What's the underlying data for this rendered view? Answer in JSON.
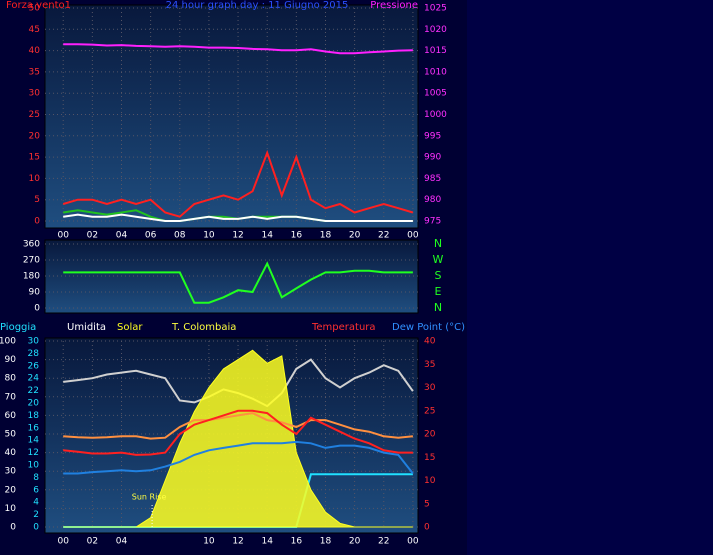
{
  "chart_data": [
    {
      "type": "line",
      "title": "24 hour graph day : 11 Giugno 2015",
      "x": [
        0,
        1,
        2,
        3,
        4,
        5,
        6,
        7,
        8,
        9,
        10,
        11,
        12,
        13,
        14,
        15,
        16,
        17,
        18,
        19,
        20,
        21,
        22,
        23,
        24
      ],
      "xlim": [
        -1.25,
        24.35
      ],
      "xticks": [
        {
          "value": 0,
          "label": "00"
        },
        {
          "value": 2,
          "label": "02"
        },
        {
          "value": 4,
          "label": "04"
        },
        {
          "value": 6,
          "label": "06"
        },
        {
          "value": 8,
          "label": "08"
        },
        10,
        12,
        14,
        16,
        18,
        20,
        22,
        {
          "value": 24,
          "label": "00"
        }
      ],
      "ylim": [
        0,
        50
      ],
      "yticks": [
        0,
        5,
        10,
        15,
        20,
        25,
        30,
        35,
        40,
        45,
        50
      ],
      "y2lim": [
        975,
        1025
      ],
      "y2ticks": [
        975,
        980,
        985,
        990,
        995,
        1000,
        1005,
        1010,
        1015,
        1020,
        1025
      ],
      "grid": true,
      "series": [
        {
          "name": "Forza vento1",
          "color": "#ff2020",
          "values": [
            4,
            5,
            5,
            4,
            5,
            4,
            5,
            2,
            1,
            4,
            5,
            6,
            5,
            7,
            16,
            6,
            15,
            5,
            3,
            4,
            2,
            3,
            4,
            3,
            2
          ]
        },
        {
          "color": "#20c020",
          "values": [
            2,
            2.5,
            2,
            1.5,
            2,
            2.5,
            1,
            0,
            0,
            0.5,
            1,
            1,
            0.5,
            1,
            1,
            1,
            1,
            0.5,
            0,
            0,
            0,
            0,
            0,
            0,
            0
          ]
        },
        {
          "color": "#ffffff",
          "values": [
            1,
            1.5,
            1,
            1,
            1.5,
            1,
            0.5,
            0,
            0,
            0.5,
            1,
            0.5,
            0.5,
            1,
            0.5,
            1,
            1,
            0.5,
            0,
            0,
            0,
            0,
            0,
            0,
            0
          ]
        },
        {
          "name": "Pressione",
          "color": "#ff20ff",
          "axis": "y2",
          "values": [
            1016.5,
            1016.5,
            1016.4,
            1016.2,
            1016.3,
            1016.1,
            1016,
            1015.9,
            1016,
            1015.9,
            1015.7,
            1015.7,
            1015.6,
            1015.4,
            1015.3,
            1015.1,
            1015.1,
            1015.3,
            1014.8,
            1014.4,
            1014.4,
            1014.6,
            1014.8,
            1015,
            1015.1
          ]
        }
      ]
    },
    {
      "type": "line",
      "x": [
        0,
        1,
        2,
        3,
        4,
        5,
        6,
        7,
        8,
        9,
        10,
        11,
        12,
        13,
        14,
        15,
        16,
        17,
        18,
        19,
        20,
        21,
        22,
        23,
        24
      ],
      "xlim": [
        -1.25,
        24.35
      ],
      "ylim": [
        0,
        360
      ],
      "yticks": [
        0,
        90,
        180,
        270,
        360
      ],
      "compass": [
        "N",
        "W",
        "S",
        "E",
        "N"
      ],
      "grid": true,
      "series": [
        {
          "color": "#20ff20",
          "values": [
            200,
            200,
            200,
            200,
            200,
            200,
            200,
            200,
            200,
            30,
            30,
            60,
            100,
            90,
            250,
            60,
            110,
            160,
            200,
            200,
            210,
            210,
            200,
            200,
            200
          ]
        }
      ]
    },
    {
      "type": "line",
      "x": [
        0,
        1,
        2,
        3,
        4,
        5,
        6,
        7,
        8,
        9,
        10,
        11,
        12,
        13,
        14,
        15,
        16,
        17,
        18,
        19,
        20,
        21,
        22,
        23,
        24
      ],
      "xlim": [
        -1.25,
        24.35
      ],
      "xticks": [
        {
          "value": 0,
          "label": "00"
        },
        {
          "value": 2,
          "label": "02"
        },
        {
          "value": 4,
          "label": "04"
        },
        10,
        12,
        14,
        16,
        18,
        20,
        22,
        {
          "value": 24,
          "label": "00"
        }
      ],
      "ylim": [
        0,
        100
      ],
      "yticks": [
        0,
        10,
        20,
        30,
        40,
        50,
        60,
        70,
        80,
        90,
        100
      ],
      "y3lim": [
        0,
        30
      ],
      "y3ticks": [
        0,
        2,
        4,
        6,
        8,
        10,
        12,
        14,
        16,
        18,
        20,
        22,
        24,
        26,
        28,
        30
      ],
      "y2lim": [
        0,
        40
      ],
      "y2ticks": [
        0,
        5,
        10,
        15,
        20,
        25,
        30,
        35,
        40
      ],
      "grid": true,
      "annotation": {
        "text": "Sun Rise",
        "x": 6.1
      },
      "series": [
        {
          "name": "Pioggia",
          "color": "#20e0ff",
          "axis": "y3",
          "values": [
            0,
            0,
            0,
            0,
            0,
            0,
            0,
            0,
            0,
            0,
            0,
            0,
            0,
            0,
            0,
            0,
            0,
            8.5,
            8.5,
            8.5,
            8.5,
            8.5,
            8.5,
            8.5,
            8.5
          ]
        },
        {
          "name": "Umidita",
          "color": "#d0d0d0",
          "values": [
            78,
            79,
            80,
            82,
            83,
            84,
            82,
            80,
            68,
            67,
            70,
            74,
            72,
            69,
            65,
            72,
            85,
            90,
            80,
            75,
            80,
            83,
            87,
            84,
            73
          ]
        },
        {
          "name": "Solar",
          "color": "#ffff20",
          "style": "area",
          "values": [
            0,
            0,
            0,
            0,
            0,
            0,
            5,
            25,
            45,
            62,
            75,
            85,
            90,
            95,
            88,
            92,
            40,
            20,
            8,
            2,
            0,
            0,
            0,
            0,
            0
          ]
        },
        {
          "name": "T. Colombaia",
          "color": "#ff9040",
          "axis": "y2",
          "values": [
            19.5,
            19.3,
            19.2,
            19.3,
            19.5,
            19.5,
            19,
            19.2,
            21.5,
            23,
            23,
            23.5,
            24,
            24.5,
            23,
            22.5,
            21.5,
            23,
            23,
            22,
            21,
            20.5,
            19.5,
            19.2,
            19.5
          ]
        },
        {
          "name": "Temperatura",
          "color": "#ff2020",
          "axis": "y2",
          "values": [
            16.5,
            16.2,
            15.8,
            15.8,
            16,
            15.5,
            15.6,
            16,
            20,
            22,
            23,
            24,
            25,
            25,
            24.5,
            22,
            20,
            23.5,
            22,
            20.5,
            19,
            18,
            16.5,
            16,
            16
          ]
        },
        {
          "name": "Dew Point (°C)",
          "color": "#2080e0",
          "axis": "y2",
          "values": [
            11.5,
            11.5,
            11.8,
            12,
            12.2,
            12,
            12.2,
            13,
            14,
            15.5,
            16.5,
            17,
            17.5,
            18,
            18,
            18,
            18.3,
            18,
            17,
            17.5,
            17.5,
            17,
            16,
            15.5,
            11.5
          ]
        }
      ]
    }
  ]
}
